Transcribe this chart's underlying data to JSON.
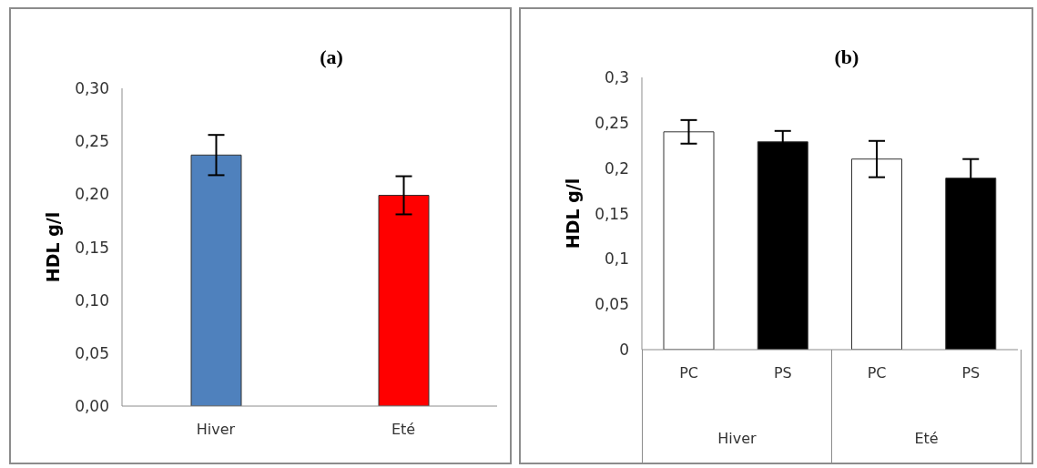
{
  "chart_data": [
    {
      "type": "bar",
      "title": "(a)",
      "ylabel": "HDL  g/l",
      "categories": [
        "Hiver",
        "Eté"
      ],
      "values": [
        0.237,
        0.199
      ],
      "colors": [
        "#4f81bd",
        "#ff0000"
      ],
      "errors": [
        [
          0.218,
          0.256
        ],
        [
          0.181,
          0.217
        ]
      ],
      "ylim": [
        0,
        0.3
      ],
      "yticks": [
        {
          "value": 0,
          "label": "0,00"
        },
        {
          "value": 0.05,
          "label": "0,05"
        },
        {
          "value": 0.1,
          "label": "0,10"
        },
        {
          "value": 0.15,
          "label": "0,15"
        },
        {
          "value": 0.2,
          "label": "0,20"
        },
        {
          "value": 0.25,
          "label": "0,25"
        },
        {
          "value": 0.3,
          "label": "0,30"
        }
      ],
      "grid": false,
      "legend": false
    },
    {
      "type": "bar",
      "title": "(b)",
      "ylabel": "HDL  g/l",
      "categories": [
        "PC",
        "PS",
        "PC",
        "PS"
      ],
      "values": [
        0.24,
        0.229,
        0.21,
        0.189
      ],
      "colors": [
        "#ffffff",
        "#000000",
        "#ffffff",
        "#000000"
      ],
      "errors": [
        0.013,
        0.012,
        0.02,
        0.021
      ],
      "annotations": [
        "Hiver",
        "Eté"
      ],
      "ylim": [
        0,
        0.3
      ],
      "yticks": [
        0,
        {
          "value": 0.05,
          "label": "0,05"
        },
        {
          "value": 0.1,
          "label": "0,1"
        },
        {
          "value": 0.15,
          "label": "0,15"
        },
        {
          "value": 0.2,
          "label": "0,2"
        },
        {
          "value": 0.25,
          "label": "0,25"
        },
        {
          "value": 0.3,
          "label": "0,3"
        }
      ],
      "grid": false,
      "legend": false
    }
  ]
}
